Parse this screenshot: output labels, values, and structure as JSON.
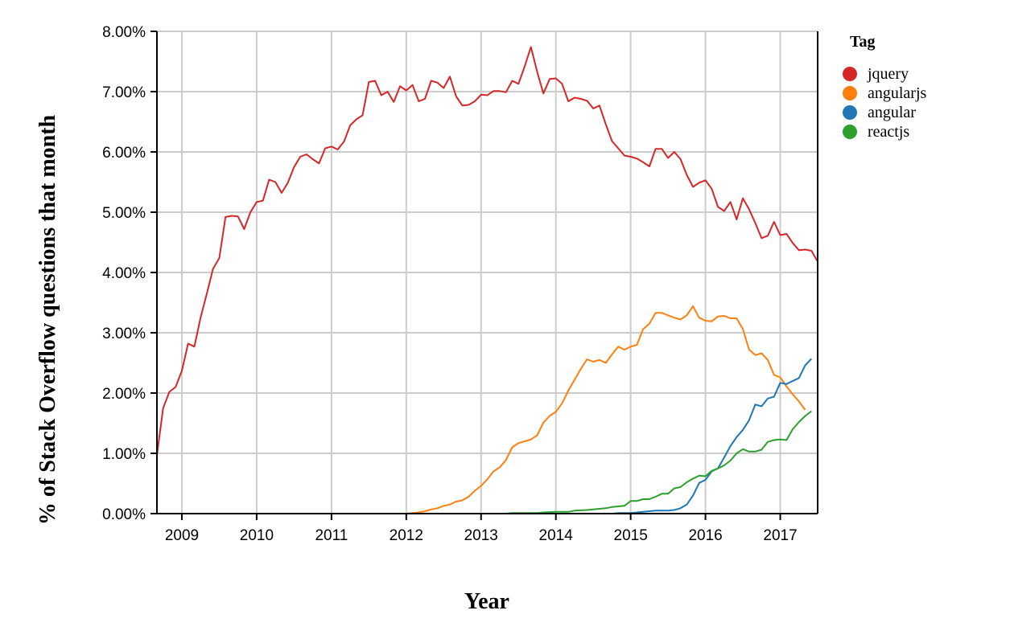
{
  "chart_data": {
    "type": "line",
    "xlabel": "Year",
    "ylabel": "% of Stack Overflow questions that month",
    "x_ticks": [
      "2009",
      "2010",
      "2011",
      "2012",
      "2013",
      "2014",
      "2015",
      "2016",
      "2017"
    ],
    "y_ticks": [
      "0.00%",
      "1.00%",
      "2.00%",
      "3.00%",
      "4.00%",
      "5.00%",
      "6.00%",
      "7.00%",
      "8.00%"
    ],
    "xlim": [
      "2008-09",
      "2017-07"
    ],
    "ylim": [
      0,
      8
    ],
    "grid": true,
    "legend": {
      "title": "Tag",
      "placement": "top-right"
    },
    "series": [
      {
        "name": "jquery",
        "color": "#d62728",
        "points": [
          [
            "2008-09",
            0.97
          ],
          [
            "2008-10",
            1.75
          ],
          [
            "2008-11",
            2.02
          ],
          [
            "2008-12",
            2.1
          ],
          [
            "2009-01",
            2.37
          ],
          [
            "2009-02",
            2.82
          ],
          [
            "2009-03",
            2.77
          ],
          [
            "2009-04",
            3.25
          ],
          [
            "2009-05",
            3.65
          ],
          [
            "2009-06",
            4.06
          ],
          [
            "2009-07",
            4.24
          ],
          [
            "2009-08",
            4.92
          ],
          [
            "2009-09",
            4.94
          ],
          [
            "2009-10",
            4.93
          ],
          [
            "2009-11",
            4.72
          ],
          [
            "2009-12",
            5.0
          ],
          [
            "2010-01",
            5.17
          ],
          [
            "2010-02",
            5.19
          ],
          [
            "2010-03",
            5.54
          ],
          [
            "2010-04",
            5.5
          ],
          [
            "2010-05",
            5.32
          ],
          [
            "2010-06",
            5.49
          ],
          [
            "2010-07",
            5.75
          ],
          [
            "2010-08",
            5.92
          ],
          [
            "2010-09",
            5.96
          ],
          [
            "2010-10",
            5.88
          ],
          [
            "2010-11",
            5.81
          ],
          [
            "2010-12",
            6.06
          ],
          [
            "2011-01",
            6.09
          ],
          [
            "2011-02",
            6.04
          ],
          [
            "2011-03",
            6.17
          ],
          [
            "2011-04",
            6.44
          ],
          [
            "2011-05",
            6.54
          ],
          [
            "2011-06",
            6.61
          ],
          [
            "2011-07",
            7.16
          ],
          [
            "2011-08",
            7.18
          ],
          [
            "2011-09",
            6.94
          ],
          [
            "2011-10",
            7.0
          ],
          [
            "2011-11",
            6.83
          ],
          [
            "2011-12",
            7.09
          ],
          [
            "2012-01",
            7.02
          ],
          [
            "2012-02",
            7.11
          ],
          [
            "2012-03",
            6.84
          ],
          [
            "2012-04",
            6.88
          ],
          [
            "2012-05",
            7.18
          ],
          [
            "2012-06",
            7.15
          ],
          [
            "2012-07",
            7.06
          ],
          [
            "2012-08",
            7.25
          ],
          [
            "2012-09",
            6.92
          ],
          [
            "2012-10",
            6.77
          ],
          [
            "2012-11",
            6.78
          ],
          [
            "2012-12",
            6.84
          ],
          [
            "2013-01",
            6.95
          ],
          [
            "2013-02",
            6.94
          ],
          [
            "2013-03",
            7.01
          ],
          [
            "2013-04",
            7.01
          ],
          [
            "2013-05",
            6.99
          ],
          [
            "2013-06",
            7.18
          ],
          [
            "2013-07",
            7.13
          ],
          [
            "2013-08",
            7.42
          ],
          [
            "2013-09",
            7.74
          ],
          [
            "2013-10",
            7.33
          ],
          [
            "2013-11",
            6.97
          ],
          [
            "2013-12",
            7.21
          ],
          [
            "2014-01",
            7.22
          ],
          [
            "2014-02",
            7.13
          ],
          [
            "2014-03",
            6.84
          ],
          [
            "2014-04",
            6.9
          ],
          [
            "2014-05",
            6.88
          ],
          [
            "2014-06",
            6.85
          ],
          [
            "2014-07",
            6.72
          ],
          [
            "2014-08",
            6.77
          ],
          [
            "2014-09",
            6.46
          ],
          [
            "2014-10",
            6.18
          ],
          [
            "2014-11",
            6.06
          ],
          [
            "2014-12",
            5.94
          ],
          [
            "2015-01",
            5.92
          ],
          [
            "2015-02",
            5.89
          ],
          [
            "2015-03",
            5.83
          ],
          [
            "2015-04",
            5.76
          ],
          [
            "2015-05",
            6.05
          ],
          [
            "2015-06",
            6.05
          ],
          [
            "2015-07",
            5.9
          ],
          [
            "2015-08",
            6.0
          ],
          [
            "2015-09",
            5.88
          ],
          [
            "2015-10",
            5.62
          ],
          [
            "2015-11",
            5.42
          ],
          [
            "2015-12",
            5.49
          ],
          [
            "2016-01",
            5.53
          ],
          [
            "2016-02",
            5.39
          ],
          [
            "2016-03",
            5.09
          ],
          [
            "2016-04",
            5.02
          ],
          [
            "2016-05",
            5.17
          ],
          [
            "2016-06",
            4.88
          ],
          [
            "2016-07",
            5.23
          ],
          [
            "2016-08",
            5.05
          ],
          [
            "2016-09",
            4.82
          ],
          [
            "2016-10",
            4.57
          ],
          [
            "2016-11",
            4.61
          ],
          [
            "2016-12",
            4.84
          ],
          [
            "2017-01",
            4.62
          ],
          [
            "2017-02",
            4.64
          ],
          [
            "2017-03",
            4.49
          ],
          [
            "2017-04",
            4.37
          ],
          [
            "2017-05",
            4.38
          ],
          [
            "2017-06",
            4.36
          ],
          [
            "2017-07",
            4.18
          ]
        ]
      },
      {
        "name": "angularjs",
        "color": "#ff7f0e",
        "points": [
          [
            "2008-09",
            0.0
          ],
          [
            "2012-01",
            0.0
          ],
          [
            "2012-02",
            0.01
          ],
          [
            "2012-03",
            0.02
          ],
          [
            "2012-04",
            0.04
          ],
          [
            "2012-05",
            0.07
          ],
          [
            "2012-06",
            0.09
          ],
          [
            "2012-07",
            0.13
          ],
          [
            "2012-08",
            0.15
          ],
          [
            "2012-09",
            0.2
          ],
          [
            "2012-10",
            0.22
          ],
          [
            "2012-11",
            0.28
          ],
          [
            "2012-12",
            0.38
          ],
          [
            "2013-01",
            0.46
          ],
          [
            "2013-02",
            0.57
          ],
          [
            "2013-03",
            0.7
          ],
          [
            "2013-04",
            0.77
          ],
          [
            "2013-05",
            0.89
          ],
          [
            "2013-06",
            1.1
          ],
          [
            "2013-07",
            1.17
          ],
          [
            "2013-08",
            1.2
          ],
          [
            "2013-09",
            1.23
          ],
          [
            "2013-10",
            1.3
          ],
          [
            "2013-11",
            1.51
          ],
          [
            "2013-12",
            1.62
          ],
          [
            "2014-01",
            1.69
          ],
          [
            "2014-02",
            1.83
          ],
          [
            "2014-03",
            2.04
          ],
          [
            "2014-04",
            2.22
          ],
          [
            "2014-05",
            2.4
          ],
          [
            "2014-06",
            2.56
          ],
          [
            "2014-07",
            2.52
          ],
          [
            "2014-08",
            2.55
          ],
          [
            "2014-09",
            2.5
          ],
          [
            "2014-10",
            2.64
          ],
          [
            "2014-11",
            2.77
          ],
          [
            "2014-12",
            2.72
          ],
          [
            "2015-01",
            2.77
          ],
          [
            "2015-02",
            2.8
          ],
          [
            "2015-03",
            3.06
          ],
          [
            "2015-04",
            3.15
          ],
          [
            "2015-05",
            3.33
          ],
          [
            "2015-06",
            3.33
          ],
          [
            "2015-07",
            3.29
          ],
          [
            "2015-08",
            3.25
          ],
          [
            "2015-09",
            3.22
          ],
          [
            "2015-10",
            3.29
          ],
          [
            "2015-11",
            3.44
          ],
          [
            "2015-12",
            3.25
          ],
          [
            "2016-01",
            3.2
          ],
          [
            "2016-02",
            3.19
          ],
          [
            "2016-03",
            3.27
          ],
          [
            "2016-04",
            3.28
          ],
          [
            "2016-05",
            3.24
          ],
          [
            "2016-06",
            3.24
          ],
          [
            "2016-07",
            3.06
          ],
          [
            "2016-08",
            2.72
          ],
          [
            "2016-09",
            2.63
          ],
          [
            "2016-10",
            2.66
          ],
          [
            "2016-11",
            2.55
          ],
          [
            "2016-12",
            2.3
          ],
          [
            "2017-01",
            2.26
          ],
          [
            "2017-02",
            2.11
          ],
          [
            "2017-03",
            1.98
          ],
          [
            "2017-04",
            1.86
          ],
          [
            "2017-05",
            1.72
          ]
        ]
      },
      {
        "name": "angular",
        "color": "#1f77b4",
        "points": [
          [
            "2008-09",
            0.0
          ],
          [
            "2014-10",
            0.0
          ],
          [
            "2014-11",
            0.01
          ],
          [
            "2015-01",
            0.01
          ],
          [
            "2015-02",
            0.02
          ],
          [
            "2015-03",
            0.03
          ],
          [
            "2015-04",
            0.04
          ],
          [
            "2015-05",
            0.05
          ],
          [
            "2015-06",
            0.05
          ],
          [
            "2015-07",
            0.05
          ],
          [
            "2015-08",
            0.06
          ],
          [
            "2015-09",
            0.09
          ],
          [
            "2015-10",
            0.15
          ],
          [
            "2015-11",
            0.3
          ],
          [
            "2015-12",
            0.51
          ],
          [
            "2016-01",
            0.56
          ],
          [
            "2016-02",
            0.7
          ],
          [
            "2016-03",
            0.75
          ],
          [
            "2016-04",
            0.93
          ],
          [
            "2016-05",
            1.12
          ],
          [
            "2016-06",
            1.27
          ],
          [
            "2016-07",
            1.39
          ],
          [
            "2016-08",
            1.55
          ],
          [
            "2016-09",
            1.81
          ],
          [
            "2016-10",
            1.78
          ],
          [
            "2016-11",
            1.91
          ],
          [
            "2016-12",
            1.94
          ],
          [
            "2017-01",
            2.17
          ],
          [
            "2017-02",
            2.15
          ],
          [
            "2017-03",
            2.2
          ],
          [
            "2017-04",
            2.25
          ],
          [
            "2017-05",
            2.46
          ],
          [
            "2017-06",
            2.57
          ]
        ]
      },
      {
        "name": "reactjs",
        "color": "#2ca02c",
        "points": [
          [
            "2008-09",
            0.0
          ],
          [
            "2013-05",
            0.0
          ],
          [
            "2013-06",
            0.01
          ],
          [
            "2013-10",
            0.01
          ],
          [
            "2013-11",
            0.02
          ],
          [
            "2014-01",
            0.03
          ],
          [
            "2014-03",
            0.03
          ],
          [
            "2014-04",
            0.05
          ],
          [
            "2014-06",
            0.06
          ],
          [
            "2014-07",
            0.07
          ],
          [
            "2014-08",
            0.08
          ],
          [
            "2014-09",
            0.09
          ],
          [
            "2014-10",
            0.11
          ],
          [
            "2014-11",
            0.12
          ],
          [
            "2014-12",
            0.13
          ],
          [
            "2015-01",
            0.21
          ],
          [
            "2015-02",
            0.21
          ],
          [
            "2015-03",
            0.24
          ],
          [
            "2015-04",
            0.24
          ],
          [
            "2015-05",
            0.28
          ],
          [
            "2015-06",
            0.33
          ],
          [
            "2015-07",
            0.33
          ],
          [
            "2015-08",
            0.42
          ],
          [
            "2015-09",
            0.44
          ],
          [
            "2015-10",
            0.52
          ],
          [
            "2015-11",
            0.58
          ],
          [
            "2015-12",
            0.63
          ],
          [
            "2016-01",
            0.62
          ],
          [
            "2016-02",
            0.71
          ],
          [
            "2016-03",
            0.75
          ],
          [
            "2016-04",
            0.8
          ],
          [
            "2016-05",
            0.88
          ],
          [
            "2016-06",
            1.0
          ],
          [
            "2016-07",
            1.07
          ],
          [
            "2016-08",
            1.03
          ],
          [
            "2016-09",
            1.03
          ],
          [
            "2016-10",
            1.06
          ],
          [
            "2016-11",
            1.19
          ],
          [
            "2016-12",
            1.22
          ],
          [
            "2017-01",
            1.23
          ],
          [
            "2017-02",
            1.22
          ],
          [
            "2017-03",
            1.4
          ],
          [
            "2017-04",
            1.52
          ],
          [
            "2017-05",
            1.62
          ],
          [
            "2017-06",
            1.7
          ]
        ]
      }
    ]
  }
}
